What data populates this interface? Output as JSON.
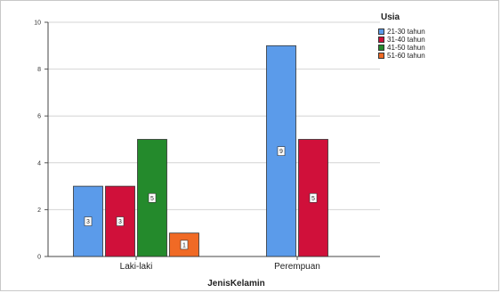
{
  "chart_data": {
    "type": "bar",
    "xlabel": "JenisKelamin",
    "ylabel": "",
    "categories": [
      "Laki-laki",
      "Perempuan"
    ],
    "series": [
      {
        "name": "21-30 tahun",
        "color": "#5b9bea",
        "values": [
          3,
          9
        ]
      },
      {
        "name": "31-40 tahun",
        "color": "#d0103a",
        "values": [
          3,
          5
        ]
      },
      {
        "name": "41-50 tahun",
        "color": "#248a2c",
        "values": [
          5,
          null
        ]
      },
      {
        "name": "51-60 tahun",
        "color": "#f06a25",
        "values": [
          1,
          null
        ]
      }
    ],
    "ylim": [
      0,
      10
    ],
    "yticks": [
      0,
      2,
      4,
      6,
      8,
      10
    ],
    "grid": true,
    "legend": {
      "title": "Usia",
      "position": "top-right"
    },
    "data_labels": true
  }
}
